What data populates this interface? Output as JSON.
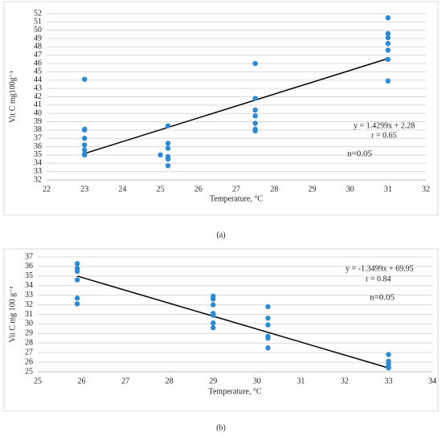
{
  "chart_data": [
    {
      "type": "scatter",
      "xlabel": "Temperature, °C",
      "ylabel": "Vit C mg100g⁻¹",
      "caption": "(a)",
      "xlim": [
        22,
        32
      ],
      "xticks": [
        22,
        23,
        24,
        25,
        26,
        27,
        28,
        29,
        30,
        31,
        32
      ],
      "ylim": [
        32,
        52
      ],
      "yticks": [
        32,
        33,
        34,
        35,
        36,
        37,
        38,
        39,
        40,
        41,
        42,
        43,
        44,
        45,
        46,
        47,
        48,
        49,
        50,
        51,
        52
      ],
      "grid": true,
      "color": "#2a8ad4",
      "x": [
        23,
        23,
        23,
        23,
        23,
        23,
        23,
        23,
        25,
        25.2,
        25.2,
        25.2,
        25.2,
        25.2,
        25.2,
        27.5,
        27.5,
        27.5,
        27.5,
        27.5,
        27.5,
        27.5,
        31,
        31,
        31,
        31,
        31,
        31,
        31
      ],
      "y": [
        44.1,
        38.1,
        38.0,
        37.0,
        36.2,
        35.6,
        35.1,
        35.0,
        35.0,
        38.5,
        36.4,
        35.8,
        34.8,
        34.5,
        33.7,
        46.0,
        41.8,
        40.4,
        39.7,
        38.8,
        38.1,
        37.9,
        51.5,
        49.6,
        49.1,
        48.4,
        47.6,
        46.5,
        43.9
      ],
      "trendline": {
        "x": [
          23,
          31
        ],
        "y": [
          35.17,
          46.6
        ]
      },
      "annotations": [
        "y = 1.4299x + 2.28",
        "r = 0.65",
        "n=0.05"
      ]
    },
    {
      "type": "scatter",
      "xlabel": "Temperature, °C",
      "ylabel": "Vit C mg 100 g⁻¹",
      "caption": "(b)",
      "xlim": [
        25,
        34
      ],
      "xticks": [
        25,
        26,
        27,
        28,
        29,
        30,
        31,
        32,
        33,
        34
      ],
      "ylim": [
        25,
        37
      ],
      "yticks": [
        25,
        26,
        27,
        28,
        29,
        30,
        31,
        32,
        33,
        34,
        35,
        36,
        37
      ],
      "grid": true,
      "color": "#2a8ad4",
      "x": [
        25.9,
        25.9,
        25.9,
        25.9,
        25.9,
        25.9,
        29,
        29,
        29,
        29,
        29,
        29,
        29,
        30.25,
        30.25,
        30.25,
        30.25,
        30.25,
        30.25,
        33,
        33,
        33,
        33,
        33
      ],
      "y": [
        36.3,
        35.8,
        35.5,
        34.6,
        32.7,
        32.1,
        32.9,
        32.6,
        32.0,
        31.1,
        30.9,
        30.1,
        29.6,
        31.8,
        30.6,
        29.9,
        28.7,
        28.5,
        27.5,
        26.8,
        26.1,
        25.8,
        25.5,
        25.4
      ],
      "trendline": {
        "x": [
          25.9,
          33
        ],
        "y": [
          35.0,
          25.4
        ]
      },
      "annotations": [
        "y = -1.3499x + 69.95",
        "r = 0.84",
        "n=0.05"
      ]
    }
  ]
}
